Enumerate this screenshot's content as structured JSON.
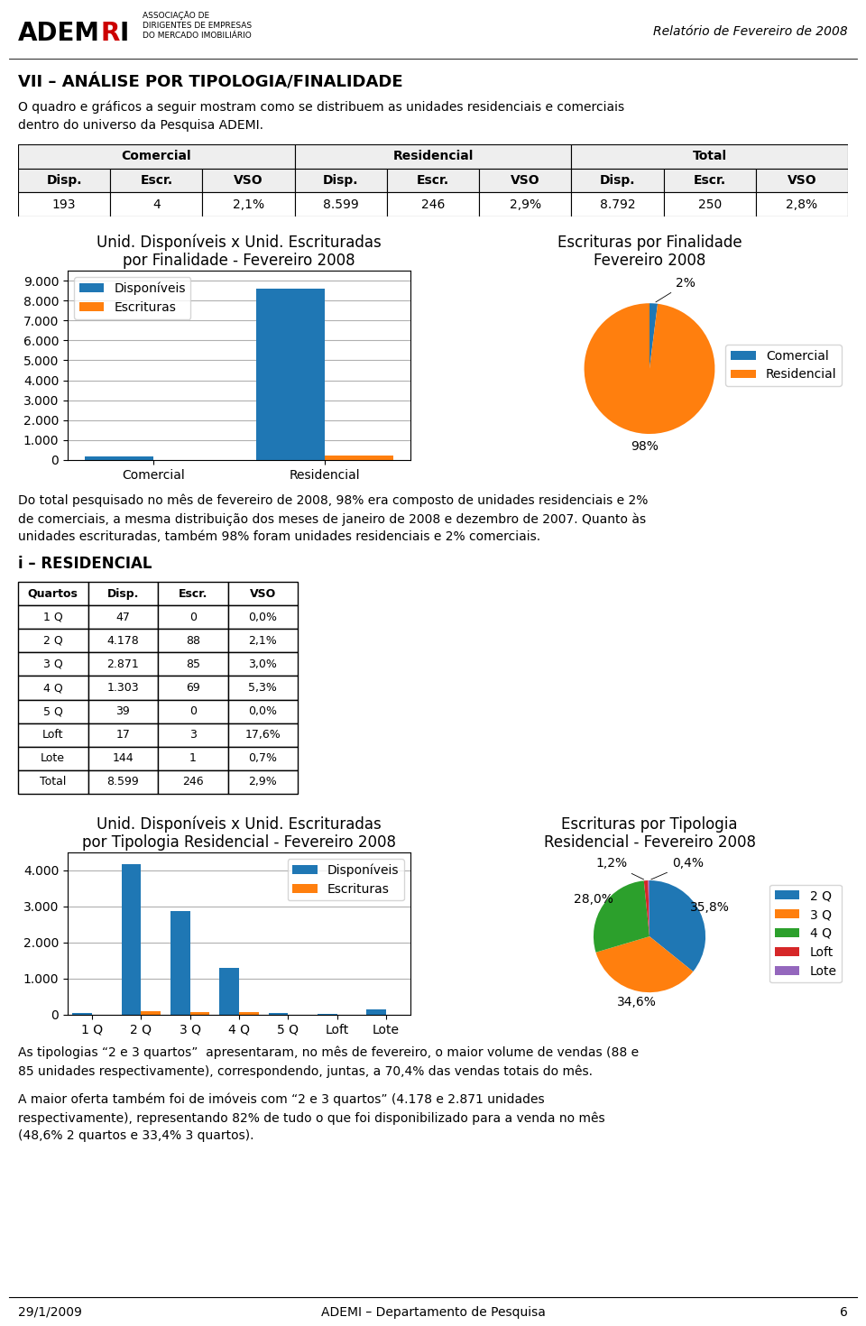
{
  "header": {
    "logo": [
      {
        "text": "ADEM"
      },
      {
        "text": "R",
        "color": "#cc0000"
      },
      {
        "text": "I"
      }
    ],
    "caption": "ASSOCIAÇÃO DE\nDIRIGENTES DE EMPRESAS\nDO MERCADO IMOBILIÁRIO",
    "text": "Relatório de Fevereiro de 2008"
  },
  "texts": {
    "section_title": "VII – ANÁLISE POR TIPOLOGIA/FINALIDADE",
    "intro": "O quadro e gráficos a seguir mostram como se distribuem as unidades residenciais e comerciais\ndentro do universo da Pesquisa ADEMI.",
    "para1": "Do total pesquisado no mês de fevereiro de 2008, 98% era composto de unidades residenciais e 2%\nde comerciais, a mesma distribuição dos meses de janeiro de 2008 e dezembro de 2007. Quanto às\nunidades escrituradas, também 98% foram unidades residenciais e 2% comerciais.",
    "section2_title": "i – RESIDENCIAL",
    "para2": "As tipologias “2 e 3 quartos”  apresentaram, no mês de fevereiro, o maior volume de vendas (88 e\n85 unidades respectivamente), correspondendo, juntas, a 70,4% das vendas totais do mês.",
    "para3": "A maior oferta também foi de imóveis com “2 e 3 quartos” (4.178 e 2.871 unidades\nrespectivamente), representando 82% de tudo o que foi disponibilizado para a venda no mês\n(48,6% 2 quartos e 33,4% 3 quartos)."
  },
  "chart_data": [
    {
      "type": "table",
      "column_groups": [
        "Comercial",
        "Residencial",
        "Total"
      ],
      "columns": [
        "Disp.",
        "Escr.",
        "VSO",
        "Disp.",
        "Escr.",
        "VSO",
        "Disp.",
        "Escr.",
        "VSO"
      ],
      "rows": [
        [
          "193",
          "4",
          "2,1%",
          "8.599",
          "246",
          "2,9%",
          "8.792",
          "250",
          "2,8%"
        ]
      ]
    },
    {
      "type": "bar",
      "title": "Unid. Disponíveis x Unid. Escrituradas\npor Finalidade - Fevereiro 2008",
      "categories": [
        "Comercial",
        "Residencial"
      ],
      "series": [
        {
          "name": "Disponíveis",
          "values": [
            193,
            8599
          ]
        },
        {
          "name": "Escrituras",
          "values": [
            4,
            246
          ]
        }
      ],
      "ylim": [
        0,
        9500
      ],
      "yticks": [
        0,
        {
          "value": 1000,
          "label": "1.000"
        },
        {
          "value": 2000,
          "label": "2.000"
        },
        {
          "value": 3000,
          "label": "3.000"
        },
        {
          "value": 4000,
          "label": "4.000"
        },
        {
          "value": 5000,
          "label": "5.000"
        },
        {
          "value": 6000,
          "label": "6.000"
        },
        {
          "value": 7000,
          "label": "7.000"
        },
        {
          "value": 8000,
          "label": "8.000"
        },
        {
          "value": 9000,
          "label": "9.000"
        }
      ],
      "grid": "y",
      "legend": "upper left"
    },
    {
      "type": "pie",
      "title": "Escrituras por Finalidade\nFevereiro 2008",
      "categories": [
        "Comercial",
        "Residencial"
      ],
      "values": [
        2,
        98
      ],
      "value_labels": [
        "2%",
        "98%"
      ],
      "data_labels": true,
      "legend": "center right"
    },
    {
      "type": "table",
      "columns": [
        "Quartos",
        "Disp.",
        "Escr.",
        "VSO"
      ],
      "rows": [
        [
          "1 Q",
          "47",
          "0",
          "0,0%"
        ],
        [
          "2 Q",
          "4.178",
          "88",
          "2,1%"
        ],
        [
          "3 Q",
          "2.871",
          "85",
          "3,0%"
        ],
        [
          "4 Q",
          "1.303",
          "69",
          "5,3%"
        ],
        [
          "5 Q",
          "39",
          "0",
          "0,0%"
        ],
        [
          "Loft",
          "17",
          "3",
          "17,6%"
        ],
        [
          "Lote",
          "144",
          "1",
          "0,7%"
        ],
        [
          "Total",
          "8.599",
          "246",
          "2,9%"
        ]
      ]
    },
    {
      "type": "bar",
      "title": "Unid. Disponíveis x Unid. Escrituradas\npor Tipologia Residencial - Fevereiro 2008",
      "categories": [
        "1 Q",
        "2 Q",
        "3 Q",
        "4 Q",
        "5 Q",
        "Loft",
        "Lote"
      ],
      "series": [
        {
          "name": "Disponíveis",
          "values": [
            47,
            4178,
            2871,
            1303,
            39,
            17,
            144
          ]
        },
        {
          "name": "Escrituras",
          "values": [
            0,
            88,
            85,
            69,
            0,
            3,
            1
          ]
        }
      ],
      "ylim": [
        0,
        4500
      ],
      "yticks": [
        0,
        {
          "value": 1000,
          "label": "1.000"
        },
        {
          "value": 2000,
          "label": "2.000"
        },
        {
          "value": 3000,
          "label": "3.000"
        },
        {
          "value": 4000,
          "label": "4.000"
        }
      ],
      "grid": "y",
      "legend": "upper right"
    },
    {
      "type": "pie",
      "title": "Escrituras por Tipologia\nResidencial - Fevereiro 2008",
      "categories": [
        "2 Q",
        "3 Q",
        "4 Q",
        "Loft",
        "Lote"
      ],
      "values": [
        35.8,
        34.6,
        28.0,
        1.2,
        0.4
      ],
      "value_labels": [
        "35,8%",
        "34,6%",
        "28,0%",
        "1,2%",
        "0,4%"
      ],
      "data_labels": true,
      "legend": "center right"
    }
  ],
  "footer": {
    "left": "29/1/2009",
    "center": "ADEMI – Departamento de Pesquisa",
    "right": "6"
  }
}
